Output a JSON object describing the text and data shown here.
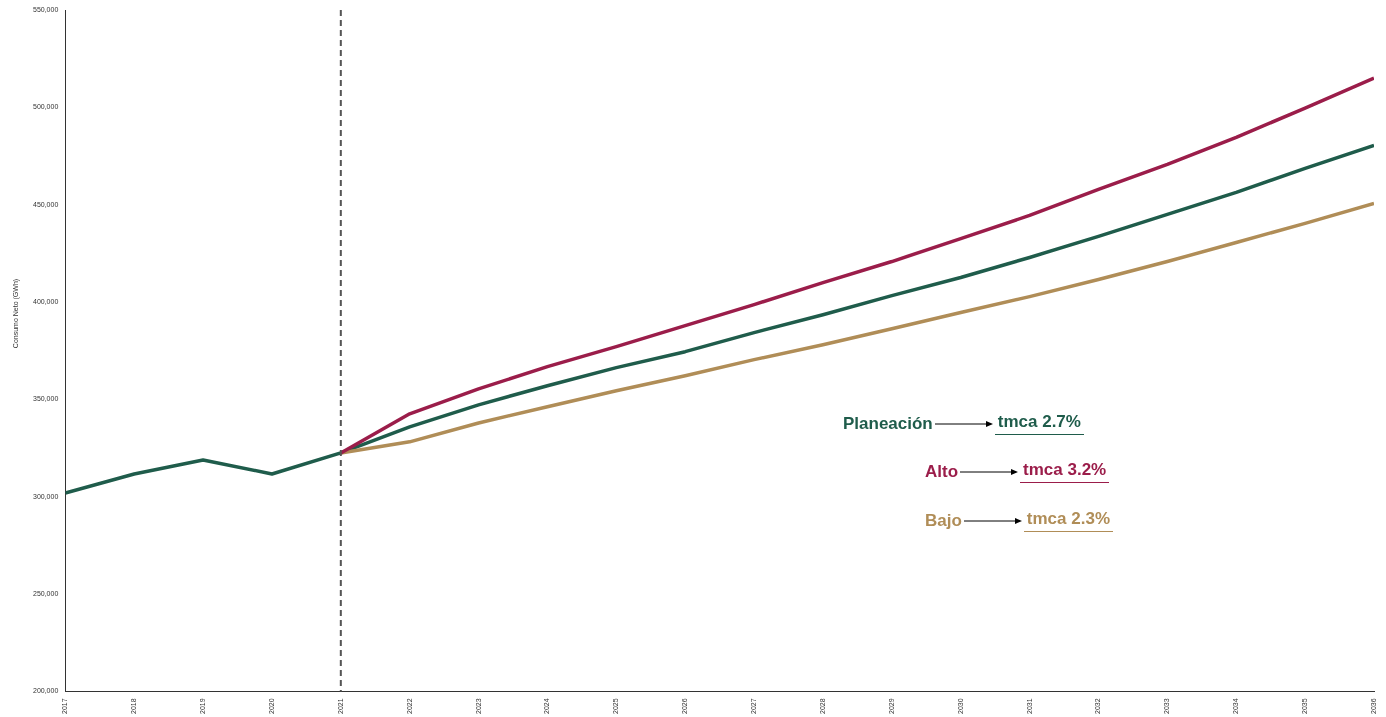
{
  "chart_data": {
    "type": "line",
    "ylabel": "Consumo Neto (GWh)",
    "xlim": [
      2017,
      2036
    ],
    "xticks": [
      2017,
      2018,
      2019,
      2020,
      2021,
      2022,
      2023,
      2024,
      2025,
      2026,
      2027,
      2028,
      2029,
      2030,
      2031,
      2032,
      2033,
      2034,
      2035,
      2036
    ],
    "ylim": [
      200000,
      550000
    ],
    "yticks": [
      {
        "value": 200000,
        "label": "200,000"
      },
      {
        "value": 250000,
        "label": "250,000"
      },
      {
        "value": 300000,
        "label": "300,000"
      },
      {
        "value": 350000,
        "label": "350,000"
      },
      {
        "value": 400000,
        "label": "400,000"
      },
      {
        "value": 450000,
        "label": "450,000"
      },
      {
        "value": 500000,
        "label": "500,000"
      },
      {
        "value": 550000,
        "label": "550,000"
      }
    ],
    "grid": false,
    "marker": "none",
    "line_style": "solid",
    "series": [
      {
        "name": "Alto",
        "color": "#9b1d4a",
        "x": [
          2021,
          2022,
          2023,
          2024,
          2025,
          2026,
          2027,
          2028,
          2029,
          2030,
          2031,
          2032,
          2033,
          2034,
          2035,
          2036
        ],
        "values": [
          322500,
          342600,
          355400,
          366800,
          377100,
          387900,
          398700,
          410000,
          420800,
          432600,
          444500,
          457900,
          470700,
          484600,
          499600,
          515000
        ]
      },
      {
        "name": "Bajo",
        "color": "#b08d57",
        "x": [
          2021,
          2022,
          2023,
          2024,
          2025,
          2026,
          2027,
          2028,
          2029,
          2030,
          2031,
          2032,
          2033,
          2034,
          2035,
          2036
        ],
        "values": [
          322500,
          328200,
          337900,
          346200,
          354400,
          362100,
          370400,
          378100,
          386300,
          394600,
          402800,
          411600,
          420800,
          430600,
          440400,
          450600
        ]
      },
      {
        "name": "Planeación",
        "color": "#1f5c4b",
        "x": [
          2017,
          2018,
          2019,
          2020,
          2021,
          2022,
          2023,
          2024,
          2025,
          2026,
          2027,
          2028,
          2029,
          2030,
          2031,
          2032,
          2033,
          2034,
          2035,
          2036
        ],
        "values": [
          301900,
          311700,
          318900,
          311700,
          322500,
          335900,
          347200,
          357000,
          366300,
          374500,
          384300,
          393500,
          403300,
          412600,
          422900,
          433700,
          445000,
          456300,
          468700,
          480500
        ]
      }
    ],
    "annotations": [
      "tmca 3.2%",
      "tmca 2.3%",
      "tmca 2.7%"
    ],
    "ref_lines": [
      {
        "axis": "x",
        "value": 2021,
        "color": "#555555",
        "line_style": "dashed"
      }
    ]
  }
}
